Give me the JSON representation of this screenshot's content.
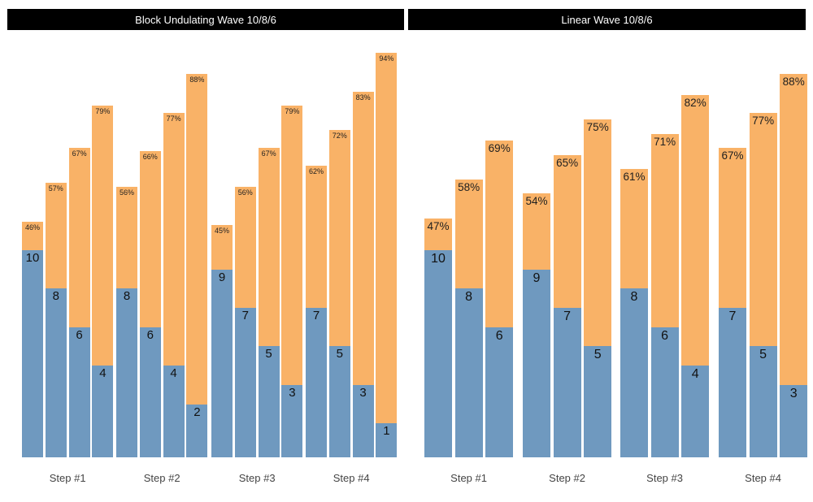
{
  "colors": {
    "bar_blue": "#6f99bf",
    "bar_orange": "#f9b267",
    "title_bar_bg": "#000000",
    "title_bar_text": "#ffffff",
    "value_label": "#1a1a1a",
    "step_label": "#444444",
    "background": "#ffffff"
  },
  "chart_data": [
    {
      "type": "bar",
      "variant": "grouped-stacked-columns",
      "title": "Block Undulating Wave 10/8/6",
      "categories": [
        "Step #1",
        "Step #2",
        "Step #3",
        "Step #4"
      ],
      "legend": "none",
      "grid": false,
      "axes": "none (values labeled directly on bars)",
      "series_meaning": {
        "blue_segment": "reps",
        "orange_segment": "intensity percent"
      },
      "groups": [
        {
          "bars": [
            {
              "reps": 10,
              "pct": 46,
              "reps_label": "10",
              "pct_label": "46%"
            },
            {
              "reps": 8,
              "pct": 57,
              "reps_label": "8",
              "pct_label": "57%"
            },
            {
              "reps": 6,
              "pct": 67,
              "reps_label": "6",
              "pct_label": "67%"
            },
            {
              "reps": 4,
              "pct": 79,
              "reps_label": "4",
              "pct_label": "79%"
            }
          ]
        },
        {
          "bars": [
            {
              "reps": 8,
              "pct": 56,
              "reps_label": "8",
              "pct_label": "56%"
            },
            {
              "reps": 6,
              "pct": 66,
              "reps_label": "6",
              "pct_label": "66%"
            },
            {
              "reps": 4,
              "pct": 77,
              "reps_label": "4",
              "pct_label": "77%"
            },
            {
              "reps": 2,
              "pct": 88,
              "reps_label": "2",
              "pct_label": "88%"
            }
          ]
        },
        {
          "bars": [
            {
              "reps": 9,
              "pct": 45,
              "reps_label": "9",
              "pct_label": "45%"
            },
            {
              "reps": 7,
              "pct": 56,
              "reps_label": "7",
              "pct_label": "56%"
            },
            {
              "reps": 5,
              "pct": 67,
              "reps_label": "5",
              "pct_label": "67%"
            },
            {
              "reps": 3,
              "pct": 79,
              "reps_label": "3",
              "pct_label": "79%"
            }
          ]
        },
        {
          "bars": [
            {
              "reps": 7,
              "pct": 62,
              "reps_label": "7",
              "pct_label": "62%"
            },
            {
              "reps": 5,
              "pct": 72,
              "reps_label": "5",
              "pct_label": "72%"
            },
            {
              "reps": 3,
              "pct": 83,
              "reps_label": "3",
              "pct_label": "83%"
            },
            {
              "reps": 1,
              "pct": 94,
              "reps_label": "1",
              "pct_label": "94%"
            }
          ]
        }
      ]
    },
    {
      "type": "bar",
      "variant": "grouped-stacked-columns",
      "title": "Linear Wave 10/8/6",
      "categories": [
        "Step #1",
        "Step #2",
        "Step #3",
        "Step #4"
      ],
      "legend": "none",
      "grid": false,
      "axes": "none (values labeled directly on bars)",
      "series_meaning": {
        "blue_segment": "reps",
        "orange_segment": "intensity percent"
      },
      "groups": [
        {
          "bars": [
            {
              "reps": 10,
              "pct": 47,
              "reps_label": "10",
              "pct_label": "47%"
            },
            {
              "reps": 8,
              "pct": 58,
              "reps_label": "8",
              "pct_label": "58%"
            },
            {
              "reps": 6,
              "pct": 69,
              "reps_label": "6",
              "pct_label": "69%"
            }
          ]
        },
        {
          "bars": [
            {
              "reps": 9,
              "pct": 54,
              "reps_label": "9",
              "pct_label": "54%"
            },
            {
              "reps": 7,
              "pct": 65,
              "reps_label": "7",
              "pct_label": "65%"
            },
            {
              "reps": 5,
              "pct": 75,
              "reps_label": "5",
              "pct_label": "75%"
            }
          ]
        },
        {
          "bars": [
            {
              "reps": 8,
              "pct": 61,
              "reps_label": "8",
              "pct_label": "61%"
            },
            {
              "reps": 6,
              "pct": 71,
              "reps_label": "6",
              "pct_label": "71%"
            },
            {
              "reps": 4,
              "pct": 82,
              "reps_label": "4",
              "pct_label": "82%"
            }
          ]
        },
        {
          "bars": [
            {
              "reps": 7,
              "pct": 67,
              "reps_label": "7",
              "pct_label": "67%"
            },
            {
              "reps": 5,
              "pct": 77,
              "reps_label": "5",
              "pct_label": "77%"
            },
            {
              "reps": 3,
              "pct": 88,
              "reps_label": "3",
              "pct_label": "88%"
            }
          ]
        }
      ]
    }
  ]
}
